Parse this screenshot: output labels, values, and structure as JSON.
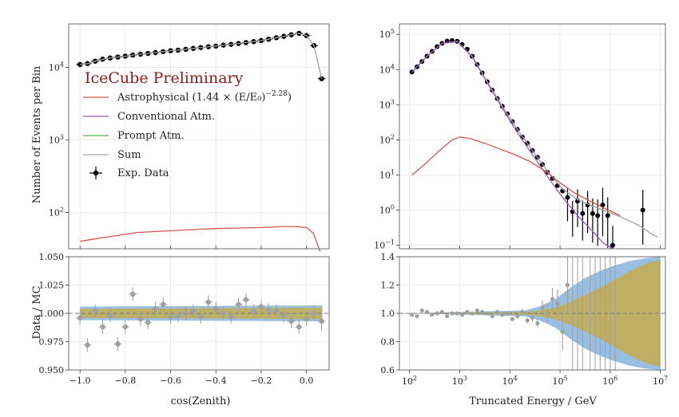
{
  "legend": {
    "prelim": "IceCube Preliminary",
    "astro": "Astrophysical (1.44 × (E/E₀)",
    "astro_exp": "−2.28",
    "astro_close": ")",
    "conv": "Conventional Atm.",
    "prompt": "Prompt Atm.",
    "sum": "Sum",
    "data": "Exp. Data"
  },
  "colors": {
    "astro": "#d9534f",
    "conv": "#9b59b6",
    "prompt": "#5cb85c",
    "sum": "#a0a0a0",
    "data": "#000000",
    "ratio_points": "#a0a0a0",
    "band_blue": "#8fb8de",
    "band_olive": "#c2ae59"
  },
  "chart_data": [
    {
      "id": "zenith_main",
      "type": "line",
      "xlabel": "",
      "ylabel": "Number of Events per Bin",
      "xlim": [
        -1.05,
        0.1
      ],
      "ylim_log10": [
        1.5,
        4.6
      ],
      "yscale": "log",
      "grid": true,
      "legend_position": "inside-left",
      "yticks": [
        {
          "v": 2,
          "base": "10",
          "exp": "2"
        },
        {
          "v": 3,
          "base": "10",
          "exp": "3"
        },
        {
          "v": 4,
          "base": "10",
          "exp": "4"
        }
      ],
      "xticks": [
        -1.0,
        -0.8,
        -0.6,
        -0.4,
        -0.2,
        0.0
      ],
      "series": [
        {
          "key": "data",
          "x": [
            -1.0,
            -0.967,
            -0.933,
            -0.9,
            -0.867,
            -0.833,
            -0.8,
            -0.767,
            -0.733,
            -0.7,
            -0.667,
            -0.633,
            -0.6,
            -0.567,
            -0.533,
            -0.5,
            -0.467,
            -0.433,
            -0.4,
            -0.367,
            -0.333,
            -0.3,
            -0.267,
            -0.233,
            -0.2,
            -0.167,
            -0.133,
            -0.1,
            -0.067,
            -0.033,
            0.0,
            0.033,
            0.067
          ],
          "y": [
            11000,
            11300,
            12200,
            13000,
            13500,
            13900,
            14300,
            14800,
            15200,
            15600,
            16000,
            16500,
            17000,
            17300,
            17800,
            18300,
            18800,
            19300,
            19700,
            20300,
            20800,
            21400,
            22000,
            22700,
            23500,
            24500,
            25700,
            26800,
            28200,
            29500,
            27500,
            20000,
            7000
          ]
        },
        {
          "key": "sum",
          "x": [
            -1.0,
            -0.967,
            -0.933,
            -0.9,
            -0.867,
            -0.833,
            -0.8,
            -0.767,
            -0.733,
            -0.7,
            -0.667,
            -0.633,
            -0.6,
            -0.567,
            -0.533,
            -0.5,
            -0.467,
            -0.433,
            -0.4,
            -0.367,
            -0.333,
            -0.3,
            -0.267,
            -0.233,
            -0.2,
            -0.167,
            -0.133,
            -0.1,
            -0.067,
            -0.033,
            0.0,
            0.033,
            0.067
          ],
          "y": [
            11000,
            11300,
            12200,
            13000,
            13500,
            13900,
            14300,
            14800,
            15200,
            15600,
            16000,
            16500,
            17000,
            17300,
            17800,
            18300,
            18800,
            19300,
            19700,
            20300,
            20800,
            21400,
            22000,
            22700,
            23500,
            24500,
            25700,
            26800,
            28200,
            29500,
            27500,
            20000,
            7000
          ]
        },
        {
          "key": "astro",
          "x": [
            -1.0,
            -0.9,
            -0.8,
            -0.75,
            -0.7,
            -0.6,
            -0.5,
            -0.4,
            -0.3,
            -0.2,
            -0.1,
            -0.05,
            0.0,
            0.03,
            0.06
          ],
          "y": [
            40,
            45,
            50,
            53,
            54,
            56,
            58,
            60,
            61,
            62,
            64,
            64,
            62,
            52,
            29
          ]
        }
      ]
    },
    {
      "id": "zenith_ratio",
      "type": "scatter",
      "xlabel": "cos(Zenith)",
      "ylabel": "Data / MC",
      "xlim": [
        -1.05,
        0.1
      ],
      "ylim": [
        0.95,
        1.05
      ],
      "yticks": [
        "0.950",
        "0.975",
        "1.000",
        "1.025",
        "1.050"
      ],
      "ytick_values": [
        0.95,
        0.975,
        1.0,
        1.025,
        1.05
      ],
      "xticks": [
        "−1.0",
        "−0.8",
        "−0.6",
        "−0.4",
        "−0.2",
        "0.0"
      ],
      "xtick_values": [
        -1.0,
        -0.8,
        -0.6,
        -0.4,
        -0.2,
        0.0
      ],
      "points": {
        "x": [
          -1.0,
          -0.967,
          -0.933,
          -0.9,
          -0.867,
          -0.833,
          -0.8,
          -0.767,
          -0.733,
          -0.7,
          -0.667,
          -0.633,
          -0.6,
          -0.567,
          -0.533,
          -0.5,
          -0.467,
          -0.433,
          -0.4,
          -0.367,
          -0.333,
          -0.3,
          -0.267,
          -0.233,
          -0.2,
          -0.167,
          -0.133,
          -0.1,
          -0.067,
          -0.033,
          0.0,
          0.033,
          0.067
        ],
        "y": [
          0.996,
          0.972,
          1.002,
          0.988,
          0.998,
          0.973,
          0.988,
          1.017,
          0.995,
          0.992,
          1.004,
          1.008,
          0.997,
          0.998,
          1.0,
          1.002,
          0.997,
          1.01,
          1.004,
          1.0,
          0.997,
          1.008,
          1.012,
          1.002,
          1.006,
          1.003,
          1.002,
          0.998,
          0.993,
          0.988,
          0.995,
          1.0,
          0.993
        ],
        "err": [
          0.006,
          0.006,
          0.006,
          0.006,
          0.006,
          0.006,
          0.006,
          0.006,
          0.006,
          0.006,
          0.006,
          0.006,
          0.006,
          0.006,
          0.006,
          0.006,
          0.006,
          0.006,
          0.006,
          0.006,
          0.006,
          0.006,
          0.006,
          0.006,
          0.006,
          0.006,
          0.006,
          0.006,
          0.006,
          0.006,
          0.006,
          0.006,
          0.008
        ]
      },
      "band_blue_halfwidth": [
        0.006,
        0.007
      ],
      "band_olive_halfwidth": [
        0.004,
        0.005
      ]
    },
    {
      "id": "energy_main",
      "type": "line",
      "xlabel": "",
      "ylabel": "",
      "xscale": "log",
      "yscale": "log",
      "xlim_log10": [
        1.8,
        7.1
      ],
      "ylim_log10": [
        -1.1,
        5.3
      ],
      "grid": true,
      "yticks": [
        {
          "v": -1,
          "base": "10",
          "exp": "−1"
        },
        {
          "v": 0,
          "base": "10",
          "exp": "0"
        },
        {
          "v": 1,
          "base": "10",
          "exp": "1"
        },
        {
          "v": 2,
          "base": "10",
          "exp": "2"
        },
        {
          "v": 3,
          "base": "10",
          "exp": "3"
        },
        {
          "v": 4,
          "base": "10",
          "exp": "4"
        },
        {
          "v": 5,
          "base": "10",
          "exp": "5"
        }
      ],
      "series": [
        {
          "key": "data",
          "log10_x": [
            2.05,
            2.15,
            2.25,
            2.35,
            2.45,
            2.55,
            2.65,
            2.75,
            2.85,
            2.95,
            3.05,
            3.15,
            3.25,
            3.35,
            3.45,
            3.55,
            3.65,
            3.75,
            3.85,
            3.95,
            4.05,
            4.15,
            4.25,
            4.35,
            4.45,
            4.55,
            4.65,
            4.75,
            4.85,
            4.95,
            5.05,
            5.15,
            5.25,
            5.35,
            5.45,
            5.55,
            5.65,
            5.75,
            5.85,
            5.95,
            6.05,
            6.65
          ],
          "y": [
            8500,
            12000,
            17000,
            24000,
            33000,
            45000,
            56000,
            65000,
            67000,
            64000,
            52000,
            38000,
            24000,
            14000,
            8000,
            4500,
            2600,
            1500,
            900,
            550,
            330,
            200,
            120,
            80,
            50,
            32,
            20,
            12,
            8,
            5,
            3.5,
            2.3,
            0.9,
            1.8,
            0.8,
            1.4,
            0.8,
            0.7,
            1.4,
            0.7,
            0.1,
            1.0
          ]
        },
        {
          "key": "sum",
          "log10_x": [
            2.05,
            2.35,
            2.65,
            2.95,
            3.25,
            3.55,
            3.85,
            4.15,
            4.45,
            4.75,
            5.05,
            5.35,
            5.65,
            5.95,
            6.25,
            6.55,
            6.85,
            6.95
          ],
          "y": [
            8500,
            24000,
            56000,
            64000,
            24000,
            4500,
            900,
            200,
            50,
            13,
            4,
            2.0,
            1.3,
            0.9,
            0.6,
            0.38,
            0.2,
            0.17
          ]
        },
        {
          "key": "conv",
          "log10_x": [
            2.05,
            2.35,
            2.65,
            2.95,
            3.25,
            3.55,
            3.85,
            4.15,
            4.45,
            4.75,
            5.05,
            5.35,
            5.65,
            5.85,
            6.05
          ],
          "y": [
            8500,
            24000,
            56000,
            63000,
            23000,
            4200,
            800,
            160,
            38,
            9,
            2.3,
            0.7,
            0.25,
            0.12,
            0.07
          ]
        },
        {
          "key": "astro",
          "log10_x": [
            2.05,
            2.3,
            2.6,
            2.85,
            3.0,
            3.2,
            3.5,
            3.8,
            4.1,
            4.4,
            4.7,
            5.0,
            5.3,
            5.6,
            5.9,
            6.2
          ],
          "y": [
            10,
            20,
            50,
            100,
            120,
            110,
            80,
            55,
            38,
            24,
            13,
            6,
            3,
            1.8,
            1.1,
            0.7
          ]
        }
      ]
    },
    {
      "id": "energy_ratio",
      "type": "scatter",
      "xlabel": "Truncated Energy / GeV",
      "ylabel": "",
      "xscale": "log",
      "xlim_log10": [
        1.8,
        7.1
      ],
      "ylim": [
        0.6,
        1.4
      ],
      "yticks": [
        "0.6",
        "0.8",
        "1.0",
        "1.2",
        "1.4"
      ],
      "ytick_values": [
        0.6,
        0.8,
        1.0,
        1.2,
        1.4
      ],
      "xticks": [
        {
          "v": 2,
          "base": "10",
          "exp": "2"
        },
        {
          "v": 3,
          "base": "10",
          "exp": "3"
        },
        {
          "v": 4,
          "base": "10",
          "exp": "4"
        },
        {
          "v": 5,
          "base": "10",
          "exp": "5"
        },
        {
          "v": 6,
          "base": "10",
          "exp": "6"
        },
        {
          "v": 7,
          "base": "10",
          "exp": "7"
        }
      ],
      "points": {
        "log10_x": [
          2.05,
          2.15,
          2.25,
          2.35,
          2.45,
          2.55,
          2.65,
          2.75,
          2.85,
          2.95,
          3.05,
          3.15,
          3.25,
          3.35,
          3.45,
          3.55,
          3.65,
          3.75,
          3.85,
          3.95,
          4.05,
          4.15,
          4.25,
          4.35,
          4.45,
          4.55,
          4.65,
          4.75,
          4.85,
          4.95,
          5.05,
          5.15
        ],
        "y": [
          0.99,
          0.98,
          1.02,
          1.01,
          0.99,
          1.0,
          1.01,
          0.98,
          1.0,
          1.0,
          0.99,
          1.01,
          1.0,
          1.02,
          1.01,
          1.0,
          0.98,
          1.01,
          0.99,
          1.0,
          0.96,
          0.98,
          1.01,
          0.95,
          0.97,
          0.93,
          1.04,
          1.0,
          1.1,
          1.07,
          0.87,
          1.2
        ],
        "err": [
          0.01,
          0.01,
          0.01,
          0.01,
          0.01,
          0.01,
          0.01,
          0.01,
          0.01,
          0.01,
          0.01,
          0.01,
          0.01,
          0.01,
          0.01,
          0.01,
          0.01,
          0.01,
          0.01,
          0.01,
          0.015,
          0.02,
          0.02,
          0.02,
          0.03,
          0.03,
          0.05,
          0.06,
          0.08,
          0.1,
          0.13,
          0.2
        ]
      },
      "band_blue_envelope": {
        "log10_x": [
          4.3,
          4.6,
          4.9,
          5.2,
          5.5,
          5.8,
          6.1,
          6.4,
          6.7,
          7.0
        ],
        "halfwidth": [
          0.02,
          0.05,
          0.1,
          0.18,
          0.25,
          0.3,
          0.34,
          0.37,
          0.39,
          0.4
        ]
      },
      "band_olive_envelope": {
        "log10_x": [
          4.3,
          4.6,
          4.9,
          5.2,
          5.5,
          5.8,
          6.1,
          6.4,
          6.7,
          7.0
        ],
        "halfwidth": [
          0.01,
          0.02,
          0.04,
          0.08,
          0.13,
          0.18,
          0.24,
          0.3,
          0.35,
          0.38
        ]
      },
      "vlines_log10_x": [
        5.25,
        5.35,
        5.45,
        5.6,
        5.7,
        5.8,
        5.9,
        6.0,
        6.1
      ]
    }
  ]
}
